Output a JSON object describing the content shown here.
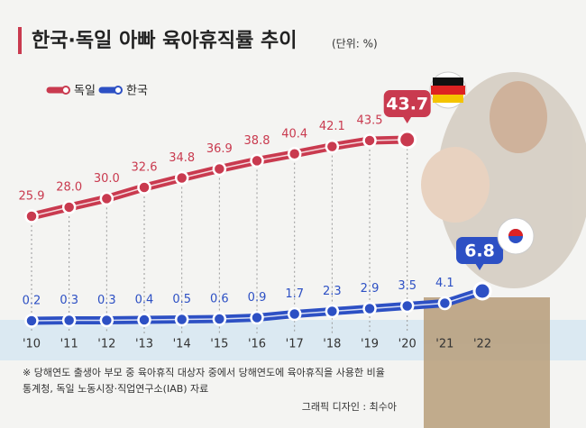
{
  "chart_data": {
    "type": "line",
    "title": "한국·독일 아빠 육아휴직률 추이",
    "subtitle": "(단위: %)",
    "categories": [
      "'10",
      "'11",
      "'12",
      "'13",
      "'14",
      "'15",
      "'16",
      "'17",
      "'18",
      "'19",
      "'20",
      "'21",
      "'22"
    ],
    "series": [
      {
        "name": "독일",
        "color": "#c93a4f",
        "values": [
          25.9,
          28.0,
          30.0,
          32.6,
          34.8,
          36.9,
          38.8,
          40.4,
          42.1,
          43.5,
          43.7,
          null,
          null
        ],
        "value_labels": [
          "25.9",
          "28.0",
          "30.0",
          "32.6",
          "34.8",
          "36.9",
          "38.8",
          "40.4",
          "42.1",
          "43.5",
          "43.7",
          null,
          null
        ]
      },
      {
        "name": "한국",
        "color": "#2d50c4",
        "values": [
          0.2,
          0.3,
          0.3,
          0.4,
          0.5,
          0.6,
          0.9,
          1.7,
          2.3,
          2.9,
          3.5,
          4.1,
          6.8
        ],
        "value_labels": [
          "0.2",
          "0.3",
          "0.3",
          "0.4",
          "0.5",
          "0.6",
          "0.9",
          "1.7",
          "2.3",
          "2.9",
          "3.5",
          "4.1",
          "6.8"
        ]
      }
    ],
    "legend": "top-left",
    "notes": [
      "※ 당해연도 출생아 부모 중 육아휴직 대상자 중에서 당해연도에 육아휴직을 사용한 비율",
      "통계청, 독일 노동시장·직업연구소(IAB) 자료"
    ],
    "credit": "그래픽 디자인 : 최수아"
  }
}
